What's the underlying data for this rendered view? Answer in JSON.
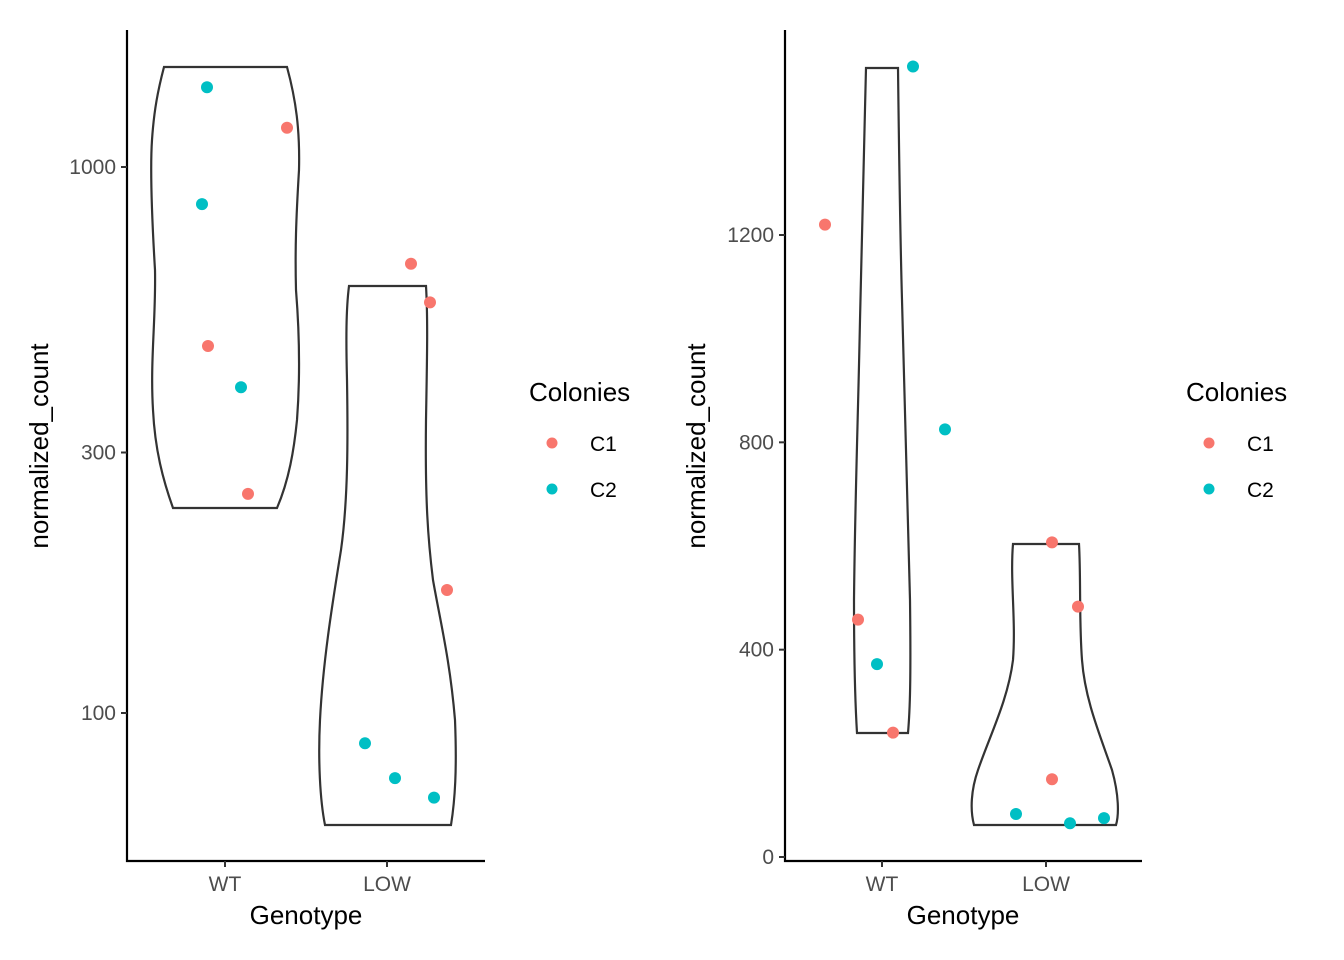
{
  "chart_data": [
    {
      "type": "violin",
      "title": "",
      "xlabel": "Genotype",
      "ylabel": "normalized_count",
      "y_scale": "log10",
      "ylim": [
        69,
        1430
      ],
      "y_ticks": [
        100,
        300,
        1000
      ],
      "categories": [
        "WT",
        "LOW"
      ],
      "series": [
        {
          "name": "C1",
          "color": "#F8766D",
          "points": [
            {
              "x": "WT",
              "y": 1180
            },
            {
              "x": "WT",
              "y": 470
            },
            {
              "x": "WT",
              "y": 252
            },
            {
              "x": "LOW",
              "y": 665
            },
            {
              "x": "LOW",
              "y": 565
            },
            {
              "x": "LOW",
              "y": 168
            }
          ]
        },
        {
          "name": "C2",
          "color": "#00BFC4",
          "points": [
            {
              "x": "WT",
              "y": 1400
            },
            {
              "x": "WT",
              "y": 855
            },
            {
              "x": "WT",
              "y": 395
            },
            {
              "x": "LOW",
              "y": 88
            },
            {
              "x": "LOW",
              "y": 76
            },
            {
              "x": "LOW",
              "y": 70
            }
          ]
        }
      ],
      "violin_ranges": {
        "WT": [
          252,
          1400
        ],
        "LOW": [
          70,
          665
        ]
      },
      "legend": {
        "title": "Colonies",
        "entries": [
          "C1",
          "C2"
        ],
        "position": "right"
      }
    },
    {
      "type": "violin",
      "title": "",
      "xlabel": "Genotype",
      "ylabel": "normalized_count",
      "y_scale": "linear",
      "ylim": [
        0,
        1530
      ],
      "y_ticks": [
        0,
        400,
        800,
        1200
      ],
      "categories": [
        "WT",
        "LOW"
      ],
      "series": [
        {
          "name": "C1",
          "color": "#F8766D",
          "points": [
            {
              "x": "WT",
              "y": 1220
            },
            {
              "x": "WT",
              "y": 458
            },
            {
              "x": "WT",
              "y": 240
            },
            {
              "x": "LOW",
              "y": 607
            },
            {
              "x": "LOW",
              "y": 483
            },
            {
              "x": "LOW",
              "y": 150
            }
          ]
        },
        {
          "name": "C2",
          "color": "#00BFC4",
          "points": [
            {
              "x": "WT",
              "y": 1525
            },
            {
              "x": "WT",
              "y": 825
            },
            {
              "x": "WT",
              "y": 372
            },
            {
              "x": "LOW",
              "y": 83
            },
            {
              "x": "LOW",
              "y": 75
            },
            {
              "x": "LOW",
              "y": 65
            }
          ]
        }
      ],
      "violin_ranges": {
        "WT": [
          240,
          1525
        ],
        "LOW": [
          65,
          607
        ]
      },
      "legend": {
        "title": "Colonies",
        "entries": [
          "C1",
          "C2"
        ],
        "position": "right"
      }
    }
  ]
}
